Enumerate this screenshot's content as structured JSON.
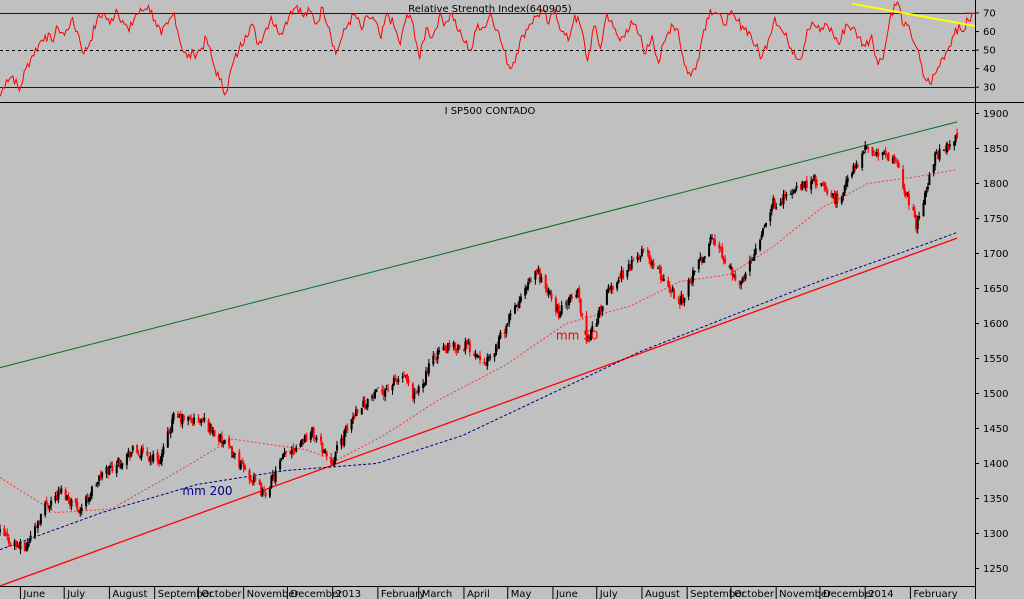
{
  "chart_data": [
    {
      "type": "line",
      "title": "Relative Strength Index(640905)",
      "ylim": [
        22,
        77
      ],
      "yticks": [
        30,
        40,
        50,
        60,
        70
      ],
      "reference_lines": [
        70,
        50,
        30
      ],
      "colors": {
        "series": "#ff0000",
        "bands": "#0000ff",
        "midline": "#000000",
        "trendline": "#ffff00"
      },
      "series": [
        {
          "values": [
            25,
            34,
            36,
            28,
            40,
            47,
            53,
            58,
            55,
            62,
            58,
            66,
            60,
            48,
            55,
            66,
            70,
            64,
            72,
            66,
            60,
            69,
            71,
            74,
            66,
            58,
            64,
            70,
            53,
            46,
            48,
            50,
            56,
            43,
            34,
            27,
            42,
            50,
            58,
            64,
            53,
            60,
            68,
            60,
            62,
            71,
            74,
            68,
            71,
            64,
            73,
            62,
            48,
            57,
            65,
            69,
            61,
            68,
            66,
            56,
            70,
            63,
            53,
            69,
            64,
            45,
            62,
            57,
            68,
            65,
            70,
            60,
            54,
            50,
            64,
            62,
            70,
            61,
            50,
            40,
            48,
            58,
            64,
            68,
            71,
            64,
            72,
            60,
            55,
            69,
            62,
            44,
            63,
            51,
            70,
            62,
            55,
            61,
            64,
            58,
            48,
            58,
            43,
            55,
            64,
            61,
            42,
            36,
            44,
            61,
            72,
            70,
            64,
            69,
            66,
            63,
            60,
            52,
            46,
            56,
            68,
            61,
            55,
            49,
            45,
            61,
            64,
            60,
            64,
            59,
            53,
            64,
            62,
            57,
            52,
            58,
            42,
            50,
            70,
            76,
            63,
            60,
            51,
            36,
            32,
            38,
            46,
            52,
            62,
            60,
            66,
            70
          ]
        }
      ]
    },
    {
      "type": "candlestick",
      "title": "I SP500 CONTADO",
      "ylim": [
        1225,
        1915
      ],
      "yticks": [
        1250,
        1300,
        1350,
        1400,
        1450,
        1500,
        1550,
        1600,
        1650,
        1700,
        1750,
        1800,
        1850,
        1900
      ],
      "x_months": [
        "June",
        "July",
        "August",
        "September",
        "October",
        "November",
        "December",
        "2013",
        "February",
        "March",
        "April",
        "May",
        "June",
        "July",
        "August",
        "September",
        "October",
        "November",
        "December",
        "2014",
        "February"
      ],
      "x_start": "2012-05-18",
      "colors": {
        "up": "#000000",
        "down": "#ff0000",
        "mm50": "#ff3333",
        "mm200": "#000080",
        "upper_trend": "#007020",
        "lower_trend": "#ff0000"
      },
      "annotations": [
        {
          "text": "mm 50",
          "color": "#ff0000",
          "x": "2013-06-03",
          "y": 1577
        },
        {
          "text": "mm 200",
          "color": "#000080",
          "x": "2012-09-20",
          "y": 1355
        }
      ],
      "upper_trendline": [
        {
          "x": "2012-05-18",
          "y": 1537
        },
        {
          "x": "2014-03-05",
          "y": 1888
        }
      ],
      "lower_trendline": [
        {
          "x": "2012-05-18",
          "y": 1225
        },
        {
          "x": "2014-03-05",
          "y": 1722
        }
      ],
      "close_path": [
        {
          "x": "2012-05-18",
          "y": 1300
        },
        {
          "x": "2012-06-01",
          "y": 1280
        },
        {
          "x": "2012-06-04",
          "y": 1278
        },
        {
          "x": "2012-06-18",
          "y": 1340
        },
        {
          "x": "2012-06-29",
          "y": 1360
        },
        {
          "x": "2012-07-12",
          "y": 1335
        },
        {
          "x": "2012-07-27",
          "y": 1385
        },
        {
          "x": "2012-08-17",
          "y": 1418
        },
        {
          "x": "2012-09-05",
          "y": 1405
        },
        {
          "x": "2012-09-14",
          "y": 1465
        },
        {
          "x": "2012-10-05",
          "y": 1460
        },
        {
          "x": "2012-10-24",
          "y": 1415
        },
        {
          "x": "2012-11-15",
          "y": 1355
        },
        {
          "x": "2012-11-30",
          "y": 1415
        },
        {
          "x": "2012-12-18",
          "y": 1445
        },
        {
          "x": "2012-12-31",
          "y": 1402
        },
        {
          "x": "2013-01-18",
          "y": 1480
        },
        {
          "x": "2013-02-19",
          "y": 1525
        },
        {
          "x": "2013-02-25",
          "y": 1490
        },
        {
          "x": "2013-03-14",
          "y": 1560
        },
        {
          "x": "2013-04-02",
          "y": 1570
        },
        {
          "x": "2013-04-18",
          "y": 1545
        },
        {
          "x": "2013-05-03",
          "y": 1610
        },
        {
          "x": "2013-05-21",
          "y": 1675
        },
        {
          "x": "2013-06-05",
          "y": 1615
        },
        {
          "x": "2013-06-18",
          "y": 1645
        },
        {
          "x": "2013-06-24",
          "y": 1575
        },
        {
          "x": "2013-07-10",
          "y": 1650
        },
        {
          "x": "2013-08-02",
          "y": 1705
        },
        {
          "x": "2013-08-15",
          "y": 1665
        },
        {
          "x": "2013-08-27",
          "y": 1632
        },
        {
          "x": "2013-09-18",
          "y": 1722
        },
        {
          "x": "2013-10-08",
          "y": 1655
        },
        {
          "x": "2013-10-29",
          "y": 1770
        },
        {
          "x": "2013-11-27",
          "y": 1805
        },
        {
          "x": "2013-12-13",
          "y": 1775
        },
        {
          "x": "2013-12-31",
          "y": 1848
        },
        {
          "x": "2014-01-15",
          "y": 1840
        },
        {
          "x": "2014-01-23",
          "y": 1825
        },
        {
          "x": "2014-02-05",
          "y": 1742
        },
        {
          "x": "2014-02-18",
          "y": 1838
        },
        {
          "x": "2014-03-05",
          "y": 1865
        }
      ],
      "mm50_path": [
        {
          "x": "2012-05-18",
          "y": 1380
        },
        {
          "x": "2012-06-25",
          "y": 1330
        },
        {
          "x": "2012-08-02",
          "y": 1335
        },
        {
          "x": "2012-09-18",
          "y": 1390
        },
        {
          "x": "2012-10-24",
          "y": 1435
        },
        {
          "x": "2012-12-13",
          "y": 1420
        },
        {
          "x": "2013-01-04",
          "y": 1405
        },
        {
          "x": "2013-02-05",
          "y": 1440
        },
        {
          "x": "2013-03-14",
          "y": 1490
        },
        {
          "x": "2013-04-29",
          "y": 1540
        },
        {
          "x": "2013-06-10",
          "y": 1600
        },
        {
          "x": "2013-07-24",
          "y": 1625
        },
        {
          "x": "2013-08-27",
          "y": 1660
        },
        {
          "x": "2013-09-30",
          "y": 1670
        },
        {
          "x": "2013-10-30",
          "y": 1710
        },
        {
          "x": "2013-12-02",
          "y": 1765
        },
        {
          "x": "2014-01-03",
          "y": 1800
        },
        {
          "x": "2014-02-06",
          "y": 1810
        },
        {
          "x": "2014-03-05",
          "y": 1820
        }
      ],
      "mm200_path": [
        {
          "x": "2012-05-18",
          "y": 1277
        },
        {
          "x": "2012-07-27",
          "y": 1330
        },
        {
          "x": "2012-09-30",
          "y": 1370
        },
        {
          "x": "2012-11-30",
          "y": 1390
        },
        {
          "x": "2013-01-31",
          "y": 1400
        },
        {
          "x": "2013-03-31",
          "y": 1440
        },
        {
          "x": "2013-05-31",
          "y": 1500
        },
        {
          "x": "2013-07-31",
          "y": 1560
        },
        {
          "x": "2013-09-30",
          "y": 1610
        },
        {
          "x": "2013-11-30",
          "y": 1660
        },
        {
          "x": "2014-01-31",
          "y": 1705
        },
        {
          "x": "2014-03-05",
          "y": 1730
        }
      ]
    }
  ]
}
